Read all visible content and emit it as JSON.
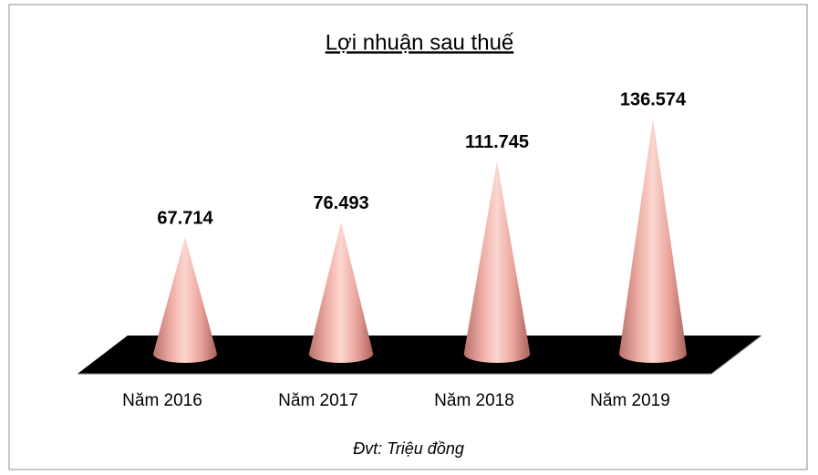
{
  "chart_data": {
    "type": "cone",
    "title": "Lợi nhuận sau thuế",
    "categories": [
      "Năm 2016",
      "Năm 2017",
      "Năm 2018",
      "Năm 2019"
    ],
    "values": [
      67714,
      76493,
      111745,
      136574
    ],
    "value_labels": [
      "67.714",
      "76.493",
      "111.745",
      "136.574"
    ],
    "color": "#f2b2aa",
    "note": "Đvt: Triệu đồng"
  }
}
